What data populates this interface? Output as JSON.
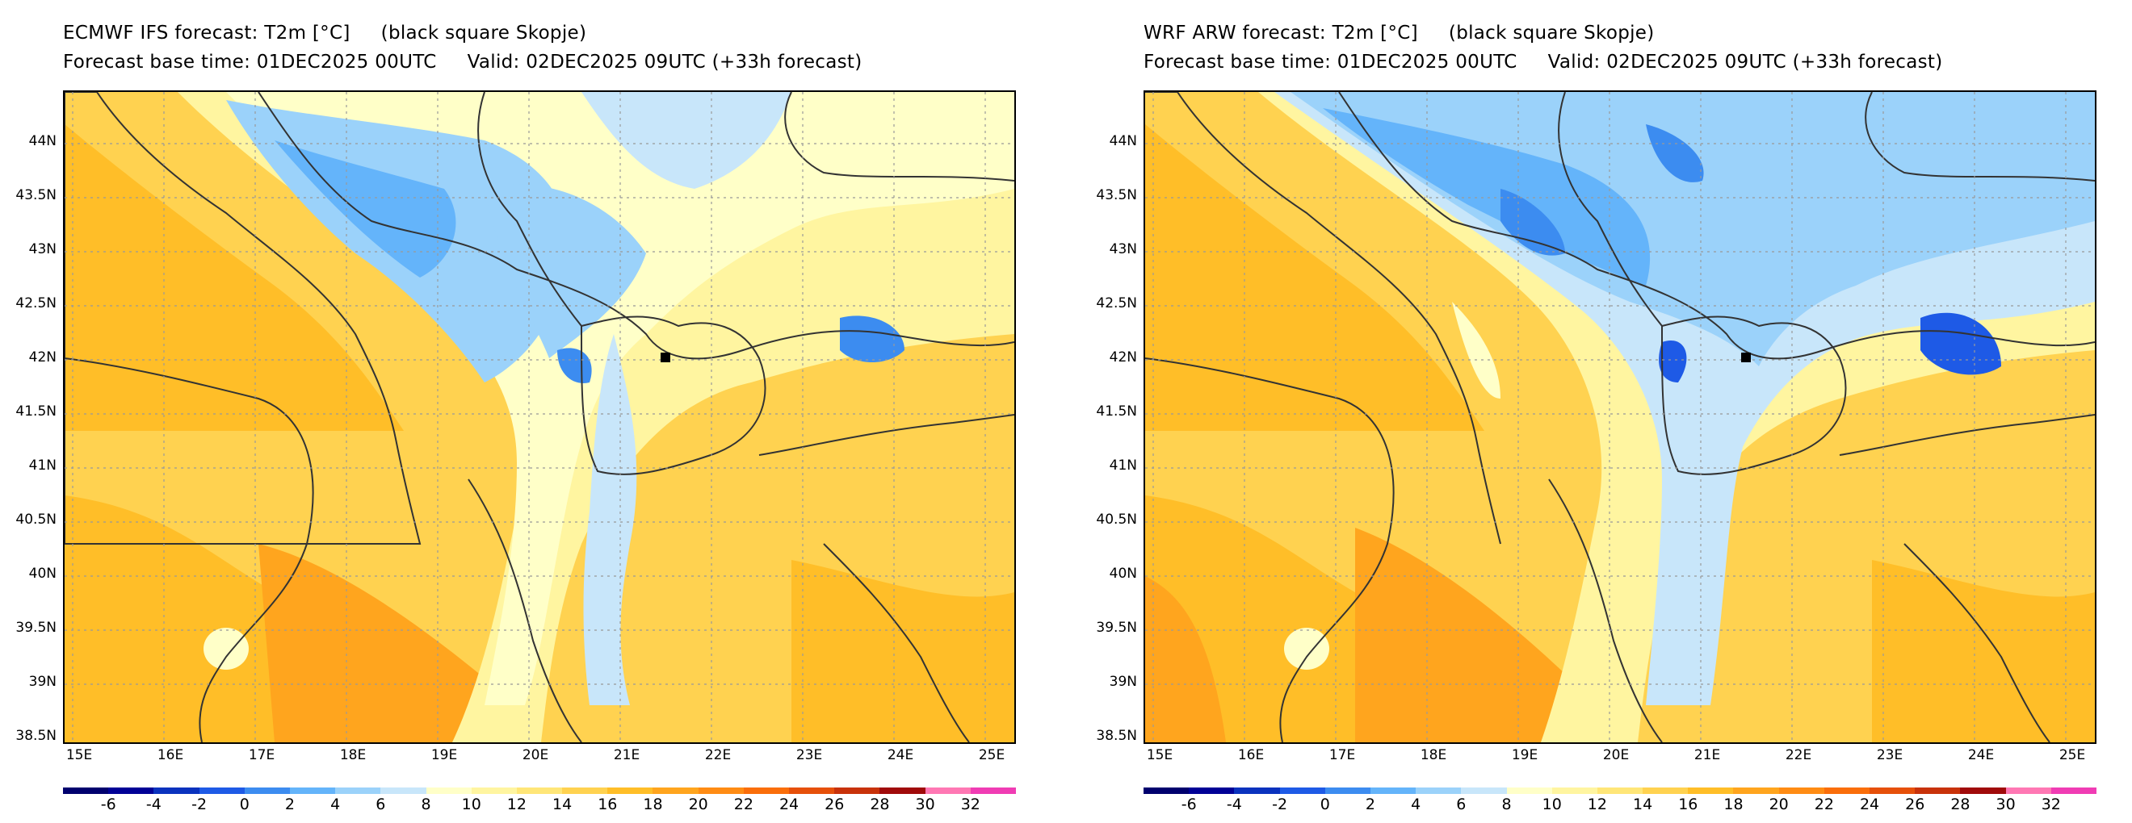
{
  "panels": [
    {
      "title_line1": "ECMWF IFS forecast: T2m [°C]     (black square Skopje)",
      "title_line2": "Forecast base time: 01DEC2025 00UTC     Valid: 02DEC2025 09UTC (+33h forecast)"
    },
    {
      "title_line1": "WRF ARW forecast: T2m [°C]     (black square Skopje)",
      "title_line2": "Forecast base time: 01DEC2025 00UTC     Valid: 02DEC2025 09UTC (+33h forecast)"
    }
  ],
  "lat_labels": [
    "44N",
    "43.5N",
    "43N",
    "42.5N",
    "42N",
    "41.5N",
    "41N",
    "40.5N",
    "40N",
    "39.5N",
    "39N",
    "38.5N"
  ],
  "lon_labels": [
    "15E",
    "16E",
    "17E",
    "18E",
    "19E",
    "20E",
    "21E",
    "22E",
    "23E",
    "24E",
    "25E"
  ],
  "colorbar": {
    "labels": [
      "-6",
      "-4",
      "-2",
      "0",
      "2",
      "4",
      "6",
      "8",
      "10",
      "12",
      "14",
      "16",
      "18",
      "20",
      "22",
      "24",
      "26",
      "28",
      "30",
      "32"
    ],
    "colors": [
      "#00006e",
      "#000096",
      "#0a32be",
      "#1e5ae6",
      "#3c8cf0",
      "#64b4fa",
      "#9bd2fa",
      "#c8e6fa",
      "#ffffc8",
      "#fff5a0",
      "#ffe678",
      "#ffd250",
      "#ffbe28",
      "#ffa51e",
      "#ff8c14",
      "#fa6e0a",
      "#e6500a",
      "#c8320a",
      "#a00a0a",
      "#ff78b4",
      "#f03cb4"
    ]
  },
  "colors": {
    "cold_deep": "#1e5ae6",
    "cold": "#64b4fa",
    "cool": "#9bd2fa",
    "chilly": "#c8e6fa",
    "mild": "#ffffc8",
    "warm1": "#fff5a0",
    "warm2": "#ffe678",
    "warm3": "#ffd250",
    "warm4": "#ffbe28",
    "hot": "#ffa51e",
    "hotter": "#ff8c14"
  },
  "city_marker": "Skopje"
}
